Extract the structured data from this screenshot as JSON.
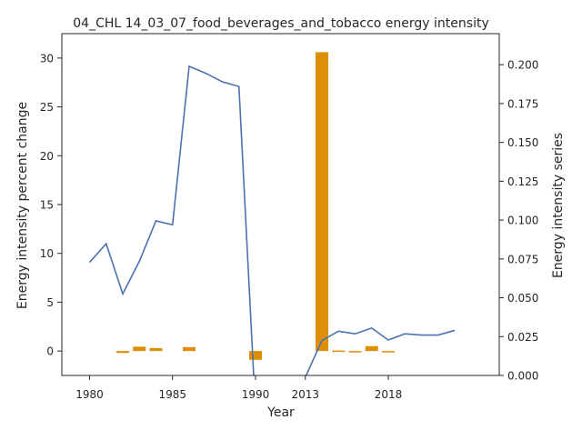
{
  "chart_data": {
    "type": "bar+line",
    "title": "04_CHL 14_03_07_food_beverages_and_tobacco energy intensity",
    "xlabel": "Year",
    "ylabel_left": "Energy intensity percent change",
    "ylabel_right": "Energy intensity series",
    "x_tick_labels": [
      "1980",
      "1985",
      "1990",
      "2013",
      "2018"
    ],
    "ylim_left": [
      -2.5,
      32.5
    ],
    "ylim_right": [
      0,
      0.22
    ],
    "yticks_left": [
      0,
      5,
      10,
      15,
      20,
      25,
      30
    ],
    "yticks_right": [
      "0.000",
      "0.025",
      "0.050",
      "0.075",
      "0.100",
      "0.125",
      "0.150",
      "0.175",
      "0.200"
    ],
    "colors": {
      "line": "#4c72b0",
      "bar": "#dd8f07"
    },
    "grid": false,
    "categories": [
      "1980",
      "1981",
      "1982",
      "1983",
      "1984",
      "1985",
      "1986",
      "1987",
      "1988",
      "1989",
      "1990",
      "2011",
      "2012",
      "2013",
      "2014",
      "2015",
      "2016",
      "2017",
      "2018",
      "2019",
      "2020",
      "2021",
      "2022"
    ],
    "bar_values": [
      null,
      null,
      -0.2,
      0.45,
      0.3,
      null,
      0.4,
      null,
      null,
      null,
      -0.9,
      null,
      null,
      null,
      30.6,
      0.05,
      -0.1,
      0.5,
      -0.1,
      null,
      null,
      null,
      null
    ],
    "line_values": [
      0.0728,
      0.0848,
      0.0525,
      0.0735,
      0.0995,
      0.097,
      0.199,
      0.1945,
      0.189,
      0.186,
      null,
      null,
      null,
      null,
      0.0225,
      0.0285,
      0.0268,
      0.0305,
      0.0228,
      0.0268,
      0.026,
      0.026,
      0.029
    ]
  }
}
